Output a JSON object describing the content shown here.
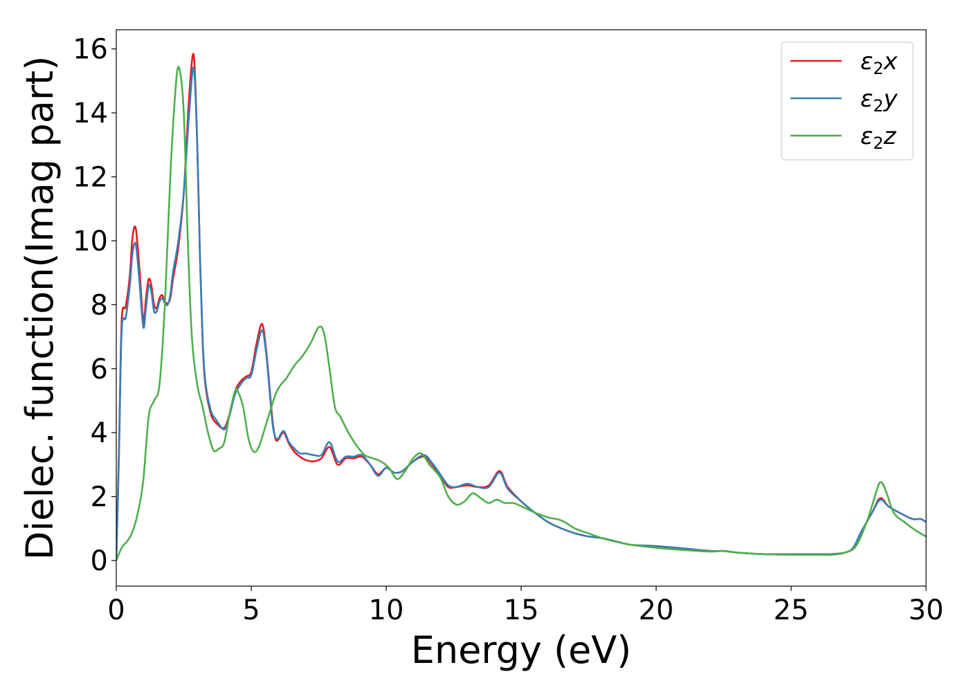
{
  "chart_data": {
    "type": "line",
    "xlabel": "Energy (eV)",
    "ylabel": "Dielec. function(Imag part)",
    "xlim": [
      0,
      30
    ],
    "ylim": [
      -0.8,
      16.6
    ],
    "xticks": [
      0,
      5,
      10,
      15,
      20,
      25,
      30
    ],
    "xtick_labels": [
      "0",
      "5",
      "10",
      "15",
      "20",
      "25",
      "30"
    ],
    "yticks": [
      0,
      2,
      4,
      6,
      8,
      10,
      12,
      14,
      16
    ],
    "ytick_labels": [
      "0",
      "2",
      "4",
      "6",
      "8",
      "10",
      "12",
      "14",
      "16"
    ],
    "grid": false,
    "legend_position": "top-right",
    "series": [
      {
        "name": "x",
        "name_prefix": "ε",
        "name_subscript": "2",
        "color": "#e41a1c",
        "x": [
          0,
          0.1,
          0.2,
          0.35,
          0.5,
          0.6,
          0.72,
          0.85,
          1.0,
          1.1,
          1.2,
          1.3,
          1.4,
          1.5,
          1.6,
          1.7,
          1.8,
          1.9,
          2.0,
          2.1,
          2.3,
          2.5,
          2.7,
          2.87,
          3.0,
          3.1,
          3.2,
          3.3,
          3.5,
          3.7,
          4.0,
          4.2,
          4.4,
          4.6,
          4.8,
          5.0,
          5.2,
          5.4,
          5.55,
          5.7,
          5.8,
          5.9,
          6.0,
          6.2,
          6.4,
          6.6,
          6.8,
          7.0,
          7.3,
          7.6,
          7.9,
          8.2,
          8.5,
          8.8,
          9.1,
          9.4,
          9.7,
          10.0,
          10.3,
          10.6,
          11.0,
          11.4,
          11.7,
          12.0,
          12.3,
          12.6,
          13.0,
          13.4,
          13.8,
          14.2,
          14.5,
          15.0,
          15.5,
          16.0,
          16.5,
          17.0,
          17.5,
          18.0,
          19.0,
          19.5,
          20.0,
          21.0,
          22.0,
          22.5,
          23.0,
          24.0,
          25.0,
          26.0,
          26.5,
          27.0,
          27.3,
          27.6,
          28.0,
          28.3,
          28.6,
          29.0,
          29.5,
          29.8,
          30.0
        ],
        "values": [
          0,
          3.5,
          7.5,
          7.95,
          8.9,
          10.1,
          10.4,
          9.2,
          7.5,
          8.2,
          8.8,
          8.6,
          8.0,
          7.9,
          8.2,
          8.3,
          8.1,
          8.05,
          8.2,
          8.8,
          9.8,
          11.5,
          14.5,
          15.8,
          13.0,
          9.5,
          6.8,
          5.5,
          4.6,
          4.3,
          4.15,
          4.6,
          5.3,
          5.6,
          5.75,
          5.9,
          6.8,
          7.4,
          6.6,
          5.2,
          4.3,
          3.8,
          3.78,
          4.0,
          3.65,
          3.4,
          3.25,
          3.15,
          3.1,
          3.2,
          3.55,
          3.0,
          3.2,
          3.2,
          3.25,
          3.0,
          2.7,
          2.9,
          2.75,
          2.8,
          3.1,
          3.25,
          3.0,
          2.65,
          2.3,
          2.3,
          2.35,
          2.3,
          2.35,
          2.8,
          2.3,
          1.85,
          1.5,
          1.2,
          1.0,
          0.85,
          0.75,
          0.7,
          0.5,
          0.47,
          0.45,
          0.38,
          0.3,
          0.3,
          0.25,
          0.2,
          0.2,
          0.2,
          0.2,
          0.25,
          0.4,
          0.9,
          1.5,
          1.95,
          1.7,
          1.5,
          1.3,
          1.3,
          1.2
        ]
      },
      {
        "name": "y",
        "name_prefix": "ε",
        "name_subscript": "2",
        "color": "#377eb8",
        "x": [
          0,
          0.1,
          0.2,
          0.35,
          0.5,
          0.6,
          0.72,
          0.85,
          1.0,
          1.1,
          1.2,
          1.3,
          1.4,
          1.5,
          1.6,
          1.7,
          1.8,
          1.9,
          2.0,
          2.1,
          2.3,
          2.5,
          2.7,
          2.87,
          3.0,
          3.1,
          3.2,
          3.3,
          3.5,
          3.7,
          4.0,
          4.2,
          4.4,
          4.6,
          4.8,
          5.0,
          5.2,
          5.4,
          5.55,
          5.7,
          5.8,
          5.9,
          6.0,
          6.2,
          6.4,
          6.6,
          6.8,
          7.0,
          7.3,
          7.6,
          7.9,
          8.2,
          8.5,
          8.8,
          9.1,
          9.4,
          9.7,
          10.0,
          10.3,
          10.6,
          11.0,
          11.4,
          11.7,
          12.0,
          12.3,
          12.6,
          13.0,
          13.4,
          13.8,
          14.2,
          14.5,
          15.0,
          15.5,
          16.0,
          16.5,
          17.0,
          17.5,
          18.0,
          19.0,
          19.5,
          20.0,
          21.0,
          22.0,
          22.5,
          23.0,
          24.0,
          25.0,
          26.0,
          26.5,
          27.0,
          27.3,
          27.6,
          28.0,
          28.3,
          28.6,
          29.0,
          29.5,
          29.8,
          30.0
        ],
        "values": [
          0,
          3.3,
          7.2,
          7.6,
          8.6,
          9.6,
          9.9,
          8.8,
          7.3,
          7.9,
          8.6,
          8.4,
          7.8,
          7.8,
          8.1,
          8.2,
          8.05,
          8.0,
          8.3,
          9.0,
          10.0,
          11.5,
          14.0,
          15.4,
          13.0,
          9.5,
          6.9,
          5.6,
          4.7,
          4.4,
          4.1,
          4.55,
          5.2,
          5.5,
          5.7,
          5.8,
          6.6,
          7.2,
          6.5,
          5.1,
          4.2,
          3.85,
          3.82,
          4.05,
          3.7,
          3.5,
          3.35,
          3.35,
          3.3,
          3.3,
          3.7,
          3.1,
          3.25,
          3.25,
          3.3,
          3.0,
          2.65,
          2.9,
          2.75,
          2.8,
          3.1,
          3.3,
          3.05,
          2.7,
          2.35,
          2.3,
          2.4,
          2.3,
          2.3,
          2.75,
          2.25,
          1.85,
          1.5,
          1.2,
          1.0,
          0.85,
          0.75,
          0.7,
          0.5,
          0.47,
          0.45,
          0.38,
          0.3,
          0.3,
          0.25,
          0.2,
          0.2,
          0.2,
          0.2,
          0.25,
          0.4,
          0.9,
          1.5,
          1.9,
          1.7,
          1.5,
          1.3,
          1.3,
          1.2
        ]
      },
      {
        "name": "z",
        "name_prefix": "ε",
        "name_subscript": "2",
        "color": "#4daf4a",
        "x": [
          0,
          0.2,
          0.4,
          0.6,
          0.8,
          1.0,
          1.2,
          1.4,
          1.6,
          1.8,
          2.0,
          2.2,
          2.33,
          2.5,
          2.65,
          2.8,
          3.0,
          3.2,
          3.4,
          3.6,
          3.8,
          4.0,
          4.2,
          4.4,
          4.5,
          4.7,
          4.9,
          5.1,
          5.3,
          5.6,
          5.9,
          6.1,
          6.3,
          6.6,
          6.9,
          7.2,
          7.5,
          7.7,
          7.9,
          8.1,
          8.3,
          8.6,
          8.9,
          9.2,
          9.5,
          9.8,
          10.1,
          10.4,
          10.7,
          11.0,
          11.3,
          11.6,
          12.0,
          12.3,
          12.6,
          12.9,
          13.2,
          13.5,
          13.8,
          14.1,
          14.4,
          14.7,
          15.0,
          15.5,
          16.0,
          16.5,
          17.0,
          17.5,
          18.0,
          19.0,
          20.0,
          21.0,
          22.0,
          22.5,
          23.0,
          24.0,
          25.0,
          26.0,
          26.5,
          27.0,
          27.4,
          27.8,
          28.1,
          28.3,
          28.5,
          28.8,
          29.2,
          29.6,
          30.0
        ],
        "values": [
          0,
          0.4,
          0.6,
          0.9,
          1.5,
          2.5,
          4.5,
          5.0,
          5.5,
          8.0,
          12.0,
          14.8,
          15.4,
          14.0,
          10.0,
          7.0,
          5.5,
          4.8,
          4.0,
          3.45,
          3.5,
          3.7,
          4.6,
          5.3,
          5.3,
          4.8,
          3.8,
          3.4,
          3.6,
          4.4,
          5.2,
          5.5,
          5.7,
          6.1,
          6.4,
          6.8,
          7.3,
          7.1,
          6.0,
          4.8,
          4.5,
          4.0,
          3.6,
          3.3,
          3.2,
          3.1,
          2.9,
          2.55,
          2.8,
          3.2,
          3.35,
          3.0,
          2.6,
          2.0,
          1.75,
          1.85,
          2.1,
          1.95,
          1.8,
          1.9,
          1.8,
          1.8,
          1.7,
          1.5,
          1.35,
          1.25,
          1.0,
          0.85,
          0.7,
          0.5,
          0.4,
          0.33,
          0.28,
          0.3,
          0.25,
          0.2,
          0.18,
          0.18,
          0.18,
          0.25,
          0.45,
          1.2,
          2.0,
          2.45,
          2.2,
          1.5,
          1.2,
          0.95,
          0.75
        ]
      }
    ]
  }
}
